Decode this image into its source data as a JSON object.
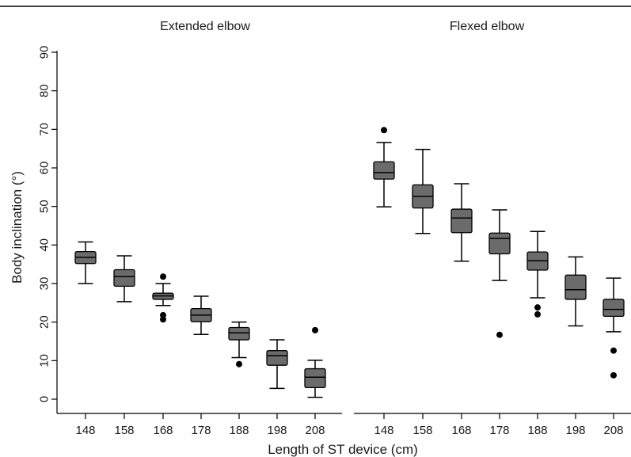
{
  "chart_data": {
    "type": "box",
    "ylabel": "Body inclination (°)",
    "xlabel": "Length of ST device (cm)",
    "ylim": [
      0,
      90
    ],
    "yticks": [
      0,
      10,
      20,
      30,
      40,
      50,
      60,
      70,
      80,
      90
    ],
    "categories": [
      "148",
      "158",
      "168",
      "178",
      "188",
      "198",
      "208"
    ],
    "box_color": "#6b6b6b",
    "panels": [
      {
        "title": "Extended elbow",
        "boxes": [
          {
            "category": "148",
            "whisker_low": 30,
            "q1": 35.2,
            "median": 36.8,
            "q3": 38.3,
            "whisker_high": 40.8,
            "outliers": []
          },
          {
            "category": "158",
            "whisker_low": 25.3,
            "q1": 29.3,
            "median": 31.8,
            "q3": 33.6,
            "whisker_high": 37.2,
            "outliers": []
          },
          {
            "category": "168",
            "whisker_low": 24.3,
            "q1": 25.9,
            "median": 26.8,
            "q3": 27.5,
            "whisker_high": 30,
            "outliers": [
              31.8,
              21.8,
              20.7
            ]
          },
          {
            "category": "178",
            "whisker_low": 16.8,
            "q1": 20.1,
            "median": 21.8,
            "q3": 23.5,
            "whisker_high": 26.7,
            "outliers": []
          },
          {
            "category": "188",
            "whisker_low": 10.8,
            "q1": 15.4,
            "median": 17.2,
            "q3": 18.6,
            "whisker_high": 20,
            "outliers": [
              9.1
            ]
          },
          {
            "category": "198",
            "whisker_low": 2.8,
            "q1": 8.8,
            "median": 11.3,
            "q3": 12.6,
            "whisker_high": 15.4,
            "outliers": []
          },
          {
            "category": "208",
            "whisker_low": 0.5,
            "q1": 3,
            "median": 5.7,
            "q3": 7.9,
            "whisker_high": 10.1,
            "outliers": [
              17.9
            ]
          }
        ]
      },
      {
        "title": "Flexed elbow",
        "boxes": [
          {
            "category": "148",
            "whisker_low": 49.9,
            "q1": 57.1,
            "median": 58.8,
            "q3": 61.6,
            "whisker_high": 66.6,
            "outliers": [
              69.8
            ]
          },
          {
            "category": "158",
            "whisker_low": 43,
            "q1": 49.6,
            "median": 52.6,
            "q3": 55.6,
            "whisker_high": 64.8,
            "outliers": []
          },
          {
            "category": "168",
            "whisker_low": 35.8,
            "q1": 43.2,
            "median": 47,
            "q3": 49.3,
            "whisker_high": 55.9,
            "outliers": []
          },
          {
            "category": "178",
            "whisker_low": 30.8,
            "q1": 37.7,
            "median": 41.7,
            "q3": 43.1,
            "whisker_high": 49.1,
            "outliers": [
              16.7
            ]
          },
          {
            "category": "188",
            "whisker_low": 26.3,
            "q1": 33.5,
            "median": 35.9,
            "q3": 38.2,
            "whisker_high": 43.5,
            "outliers": [
              23.8,
              22
            ]
          },
          {
            "category": "198",
            "whisker_low": 19,
            "q1": 25.9,
            "median": 28.4,
            "q3": 32.2,
            "whisker_high": 36.9,
            "outliers": []
          },
          {
            "category": "208",
            "whisker_low": 17.5,
            "q1": 21.5,
            "median": 23.3,
            "q3": 25.9,
            "whisker_high": 31.4,
            "outliers": [
              12.6,
              6.2
            ]
          }
        ]
      }
    ]
  }
}
